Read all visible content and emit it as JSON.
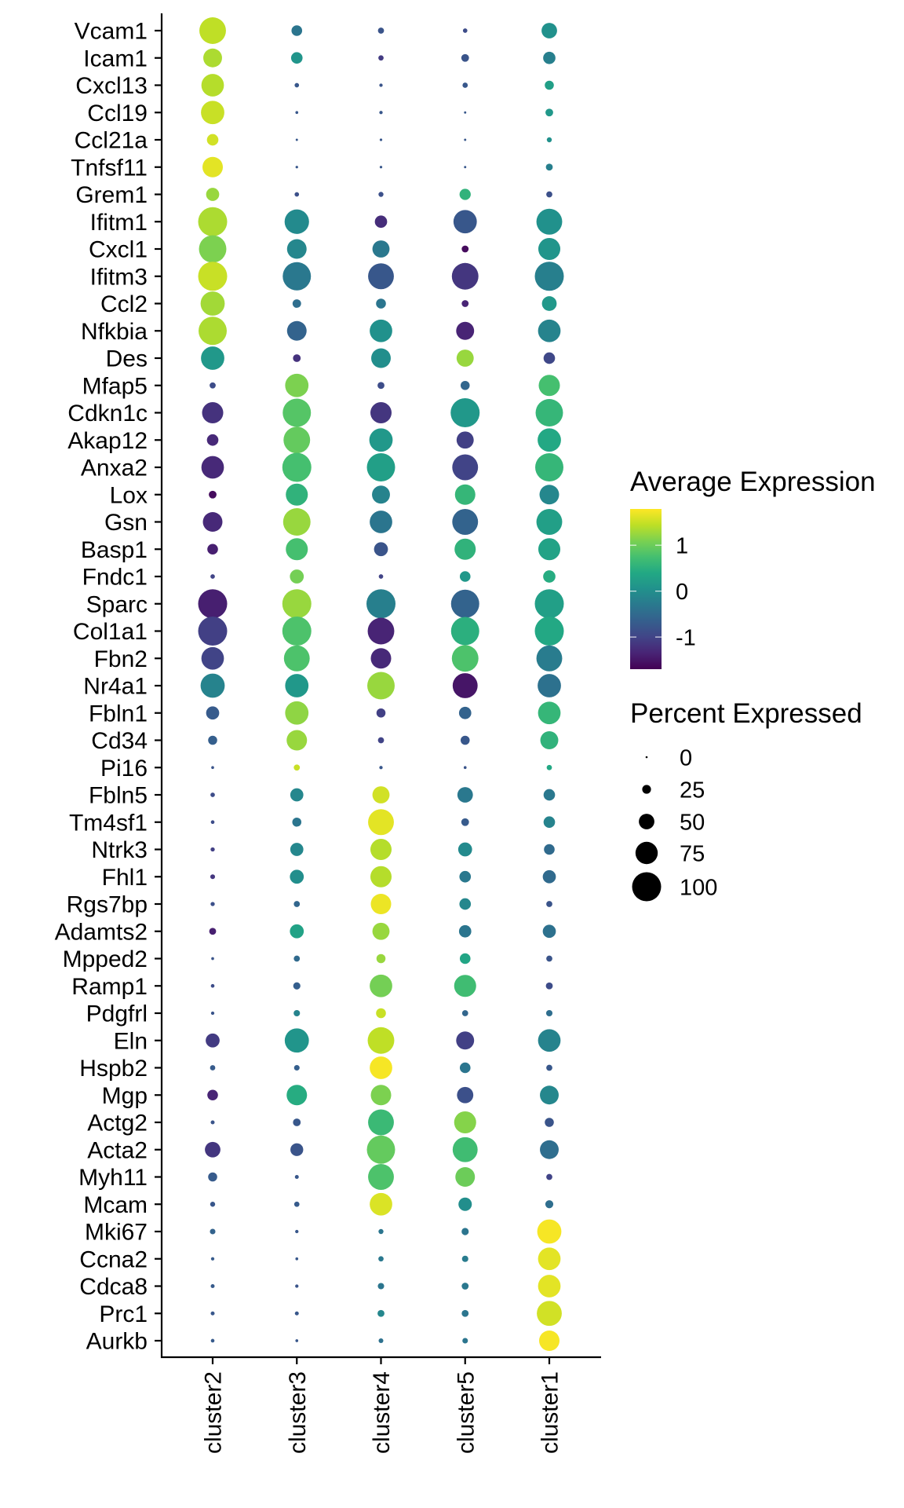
{
  "chart_data": {
    "type": "dot",
    "title": "",
    "xlabel": "",
    "ylabel": "",
    "categories": [
      "cluster2",
      "cluster3",
      "cluster4",
      "cluster5",
      "cluster1"
    ],
    "genes": [
      "Vcam1",
      "Icam1",
      "Cxcl13",
      "Ccl19",
      "Ccl21a",
      "Tnfsf11",
      "Grem1",
      "Ifitm1",
      "Cxcl1",
      "Ifitm3",
      "Ccl2",
      "Nfkbia",
      "Des",
      "Mfap5",
      "Cdkn1c",
      "Akap12",
      "Anxa2",
      "Lox",
      "Gsn",
      "Basp1",
      "Fndc1",
      "Sparc",
      "Col1a1",
      "Fbn2",
      "Nr4a1",
      "Fbln1",
      "Cd34",
      "Pi16",
      "Fbln5",
      "Tm4sf1",
      "Ntrk3",
      "Fhl1",
      "Rgs7bp",
      "Adamts2",
      "Mpped2",
      "Ramp1",
      "Pdgfrl",
      "Eln",
      "Hspb2",
      "Mgp",
      "Actg2",
      "Acta2",
      "Myh11",
      "Mcam",
      "Mki67",
      "Ccna2",
      "Cdca8",
      "Prc1",
      "Aurkb"
    ],
    "avg_expression": [
      [
        1.45,
        -0.35,
        -0.8,
        -0.9,
        0.05
      ],
      [
        1.35,
        0.1,
        -1.1,
        -0.8,
        -0.2
      ],
      [
        1.4,
        -0.75,
        -0.8,
        -0.75,
        0.25
      ],
      [
        1.5,
        -0.75,
        -0.75,
        -0.75,
        0.15
      ],
      [
        1.55,
        -0.75,
        -0.75,
        -0.75,
        0.05
      ],
      [
        1.65,
        -0.75,
        -0.75,
        -0.75,
        -0.2
      ],
      [
        1.25,
        -0.85,
        -0.85,
        0.55,
        -0.85
      ],
      [
        1.35,
        -0.05,
        -1.25,
        -0.75,
        0.05
      ],
      [
        1.1,
        -0.1,
        -0.3,
        -1.6,
        0.1
      ],
      [
        1.5,
        -0.3,
        -0.75,
        -1.15,
        -0.2
      ],
      [
        1.3,
        -0.45,
        -0.35,
        -1.35,
        0.15
      ],
      [
        1.35,
        -0.6,
        0.05,
        -1.35,
        -0.15
      ],
      [
        0.15,
        -1.2,
        0.0,
        1.25,
        -0.95
      ],
      [
        -0.9,
        1.1,
        -0.9,
        -0.55,
        0.75
      ],
      [
        -1.2,
        0.85,
        -1.15,
        0.15,
        0.6
      ],
      [
        -1.3,
        0.95,
        0.15,
        -1.05,
        0.4
      ],
      [
        -1.3,
        0.75,
        0.25,
        -1.0,
        0.6
      ],
      [
        -1.6,
        0.55,
        -0.15,
        0.6,
        -0.1
      ],
      [
        -1.3,
        1.25,
        -0.35,
        -0.6,
        0.25
      ],
      [
        -1.4,
        0.75,
        -0.8,
        0.55,
        0.3
      ],
      [
        -1.0,
        1.05,
        -1.0,
        0.15,
        0.45
      ],
      [
        -1.4,
        1.25,
        -0.2,
        -0.6,
        0.25
      ],
      [
        -1.05,
        0.8,
        -1.35,
        0.5,
        0.4
      ],
      [
        -1.0,
        0.8,
        -1.3,
        0.8,
        -0.25
      ],
      [
        -0.15,
        0.15,
        1.25,
        -1.5,
        -0.4
      ],
      [
        -0.7,
        1.2,
        -1.05,
        -0.6,
        0.6
      ],
      [
        -0.65,
        1.25,
        -1.0,
        -0.75,
        0.55
      ],
      [
        -0.8,
        1.5,
        -0.75,
        -0.8,
        0.4
      ],
      [
        -0.9,
        -0.1,
        1.55,
        -0.3,
        -0.3
      ],
      [
        -0.9,
        -0.35,
        1.65,
        -0.7,
        -0.15
      ],
      [
        -1.05,
        -0.1,
        1.4,
        -0.05,
        -0.5
      ],
      [
        -1.15,
        0.0,
        1.4,
        -0.3,
        -0.5
      ],
      [
        -0.85,
        -0.55,
        1.7,
        -0.1,
        -0.8
      ],
      [
        -1.4,
        0.3,
        1.25,
        -0.35,
        -0.4
      ],
      [
        -0.8,
        -0.5,
        1.25,
        0.35,
        -0.8
      ],
      [
        -0.9,
        -0.65,
        1.05,
        0.7,
        -0.9
      ],
      [
        -0.8,
        -0.15,
        1.5,
        -0.55,
        -0.45
      ],
      [
        -1.1,
        0.1,
        1.45,
        -1.05,
        -0.15
      ],
      [
        -0.7,
        -0.65,
        1.75,
        -0.35,
        -0.75
      ],
      [
        -1.35,
        0.45,
        1.1,
        -0.85,
        -0.1
      ],
      [
        -0.8,
        -0.75,
        0.65,
        1.15,
        -0.8
      ],
      [
        -1.15,
        -0.8,
        0.95,
        0.7,
        -0.45
      ],
      [
        -0.7,
        -0.75,
        0.8,
        1.0,
        -1.0
      ],
      [
        -0.75,
        -0.7,
        1.6,
        0.0,
        -0.45
      ],
      [
        -0.6,
        -0.75,
        -0.35,
        -0.35,
        1.75
      ],
      [
        -0.7,
        -0.75,
        -0.3,
        -0.25,
        1.65
      ],
      [
        -0.7,
        -0.8,
        -0.35,
        -0.3,
        1.65
      ],
      [
        -0.75,
        -0.75,
        -0.1,
        -0.35,
        1.55
      ],
      [
        -0.7,
        -0.75,
        -0.4,
        -0.35,
        1.75
      ]
    ],
    "percent_expressed": [
      [
        91,
        32,
        15,
        9,
        50
      ],
      [
        62,
        35,
        12,
        21,
        38
      ],
      [
        76,
        9,
        5,
        12,
        26
      ],
      [
        79,
        3,
        5,
        1,
        21
      ],
      [
        35,
        1,
        2,
        1,
        11
      ],
      [
        68,
        2,
        2,
        1,
        18
      ],
      [
        41,
        9,
        11,
        34,
        15
      ],
      [
        100,
        83,
        38,
        79,
        88
      ],
      [
        94,
        65,
        56,
        18,
        74
      ],
      [
        100,
        97,
        88,
        91,
        100
      ],
      [
        82,
        24,
        29,
        18,
        47
      ],
      [
        97,
        65,
        76,
        59,
        76
      ],
      [
        79,
        21,
        65,
        56,
        35
      ],
      [
        15,
        79,
        18,
        26,
        71
      ],
      [
        71,
        97,
        71,
        100,
        94
      ],
      [
        35,
        91,
        79,
        56,
        79
      ],
      [
        76,
        100,
        97,
        88,
        97
      ],
      [
        21,
        74,
        59,
        68,
        65
      ],
      [
        65,
        94,
        76,
        88,
        88
      ],
      [
        32,
        74,
        44,
        71,
        74
      ],
      [
        9,
        44,
        9,
        32,
        38
      ],
      [
        100,
        100,
        100,
        97,
        100
      ],
      [
        100,
        100,
        91,
        97,
        100
      ],
      [
        76,
        88,
        68,
        91,
        88
      ],
      [
        82,
        79,
        94,
        85,
        79
      ],
      [
        41,
        79,
        26,
        38,
        76
      ],
      [
        26,
        68,
        15,
        26,
        59
      ],
      [
        3,
        15,
        5,
        3,
        12
      ],
      [
        9,
        41,
        56,
        50,
        35
      ],
      [
        6,
        26,
        88,
        21,
        35
      ],
      [
        8,
        41,
        71,
        44,
        32
      ],
      [
        10,
        44,
        71,
        35,
        41
      ],
      [
        8,
        15,
        68,
        35,
        15
      ],
      [
        18,
        44,
        56,
        38,
        41
      ],
      [
        3,
        15,
        26,
        32,
        15
      ],
      [
        6,
        19,
        76,
        74,
        18
      ],
      [
        5,
        16,
        29,
        15,
        16
      ],
      [
        44,
        82,
        91,
        59,
        76
      ],
      [
        12,
        13,
        76,
        32,
        15
      ],
      [
        32,
        68,
        68,
        53,
        62
      ],
      [
        7,
        21,
        88,
        74,
        26
      ],
      [
        50,
        40,
        97,
        85,
        62
      ],
      [
        26,
        7,
        88,
        65,
        15
      ],
      [
        11,
        12,
        76,
        42,
        22
      ],
      [
        13,
        5,
        11,
        19,
        82
      ],
      [
        5,
        3,
        12,
        16,
        76
      ],
      [
        7,
        5,
        16,
        18,
        76
      ],
      [
        7,
        7,
        18,
        18,
        85
      ],
      [
        6,
        3,
        10,
        13,
        68
      ]
    ],
    "color_scale": {
      "title": "Average Expression",
      "colormap": "viridis",
      "range": [
        -1.7,
        1.79
      ],
      "ticks": [
        1,
        0,
        -1
      ],
      "tick_labels": [
        "1",
        "0",
        "-1"
      ],
      "low_color": "#440154",
      "high_color": "#fde725"
    },
    "size_scale": {
      "title": "Percent Expressed",
      "breaks": [
        0,
        25,
        50,
        75,
        100
      ],
      "labels": [
        "0",
        "25",
        "50",
        "75",
        "100"
      ]
    },
    "legend_position": "right",
    "grid": false
  }
}
